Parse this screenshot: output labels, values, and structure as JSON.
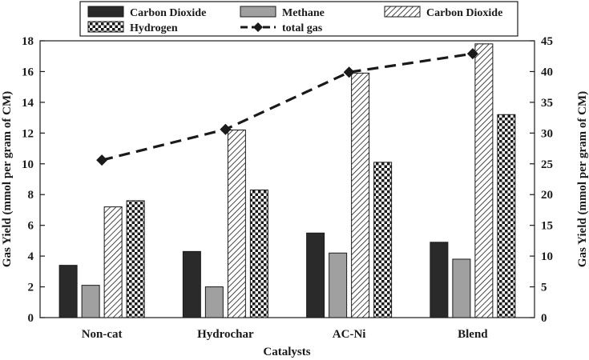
{
  "chart_data": {
    "type": "bar",
    "title": "",
    "xlabel": "Catalysts",
    "ylabel": "Gas Yield (mmol per  gram of CM)",
    "ylabel_right": "Gas Yield (mmol per  gram of CM)",
    "categories": [
      "Non-cat",
      "Hydrochar",
      "AC-Ni",
      "Blend"
    ],
    "ylim": [
      0,
      18
    ],
    "yticks": [
      0,
      2,
      4,
      6,
      8,
      10,
      12,
      14,
      16,
      18
    ],
    "ylim_right": [
      0,
      45
    ],
    "yticks_right": [
      0,
      5,
      10,
      15,
      20,
      25,
      30,
      35,
      40,
      45
    ],
    "grid": false,
    "legend_position": "top",
    "series": [
      {
        "name": "Carbon Dioxide",
        "axis": "left",
        "pattern": "solid-dark",
        "color": "#2a2a2a",
        "values": [
          3.4,
          4.3,
          5.5,
          4.9
        ]
      },
      {
        "name": "Methane",
        "axis": "left",
        "pattern": "solid-gray",
        "color": "#a0a0a0",
        "values": [
          2.1,
          2.0,
          4.2,
          3.8
        ]
      },
      {
        "name": "Carbon Dioxide",
        "axis": "left",
        "pattern": "diagonal-hatch",
        "color": "#1a1a1a",
        "values": [
          7.2,
          12.2,
          15.9,
          17.8
        ]
      },
      {
        "name": "Hydrogen",
        "axis": "left",
        "pattern": "checker",
        "color": "#1a1a1a",
        "values": [
          7.6,
          8.3,
          10.1,
          13.2
        ]
      },
      {
        "name": "total gas",
        "axis": "right",
        "type": "line",
        "style": "dashed",
        "marker": "diamond",
        "color": "#1a1a1a",
        "values": [
          25.6,
          30.6,
          39.9,
          42.9
        ]
      }
    ]
  }
}
